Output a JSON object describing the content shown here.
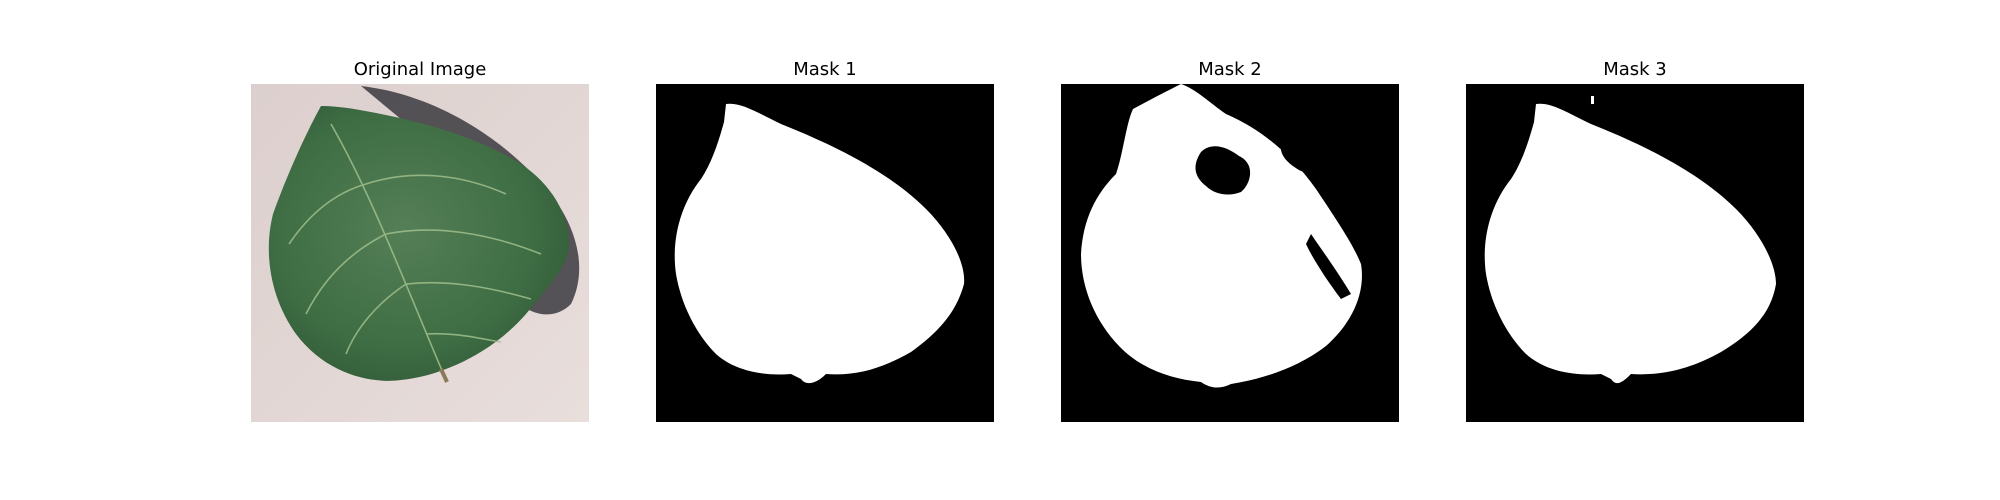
{
  "panels": [
    {
      "title": "Original Image",
      "content": "leaf photo"
    },
    {
      "title": "Mask 1",
      "content": "binary mask"
    },
    {
      "title": "Mask 2",
      "content": "binary mask"
    },
    {
      "title": "Mask 3",
      "content": "binary mask"
    }
  ],
  "colors": {
    "background": "#ffffff",
    "surface": "#d8cccb",
    "leaf": "#3f6e44",
    "leaf_dark": "#2c5333",
    "vein": "#9fbf8c",
    "shadow": "#3b3a40",
    "mask_fg": "#ffffff",
    "mask_bg": "#000000"
  }
}
